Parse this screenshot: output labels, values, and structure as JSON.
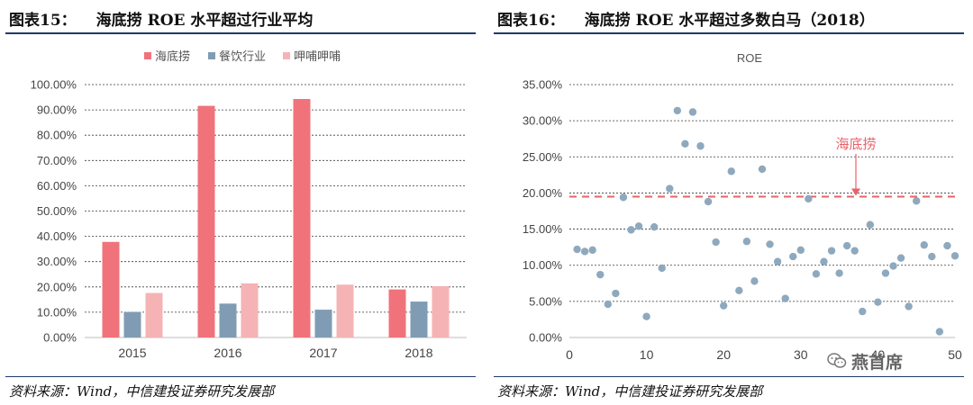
{
  "left": {
    "title_num": "图表15：",
    "title_text": "海底捞 ROE 水平超过行业平均",
    "source": "资料来源：Wind，中信建投证券研究发展部"
  },
  "right": {
    "title_num": "图表16：",
    "title_text": "海底捞 ROE 水平超过多数白马（2018）",
    "source": "资料来源：Wind，中信建投证券研究发展部"
  },
  "watermark": {
    "text": "燕首席"
  },
  "chart_data": [
    {
      "type": "bar",
      "title": "",
      "categories": [
        "2015",
        "2016",
        "2017",
        "2018"
      ],
      "series": [
        {
          "name": "海底捞",
          "values": [
            37.8,
            91.6,
            94.3,
            19.0
          ],
          "color": "#f0737b"
        },
        {
          "name": "餐饮行业",
          "values": [
            10.1,
            13.4,
            11.0,
            14.2
          ],
          "color": "#7f9cb4"
        },
        {
          "name": "呷哺呷哺",
          "values": [
            17.6,
            21.4,
            20.9,
            20.3
          ],
          "color": "#f6b3b5"
        }
      ],
      "yticks": [
        "0.00%",
        "10.00%",
        "20.00%",
        "30.00%",
        "40.00%",
        "50.00%",
        "60.00%",
        "70.00%",
        "80.00%",
        "90.00%",
        "100.00%"
      ],
      "ylim": [
        0,
        100
      ],
      "grid": true,
      "legend": "top-center"
    },
    {
      "type": "scatter",
      "title": "ROE",
      "xticks": [
        "0",
        "10",
        "20",
        "30",
        "40",
        "50"
      ],
      "xlim": [
        0,
        50
      ],
      "yticks": [
        "0.00%",
        "5.00%",
        "10.00%",
        "15.00%",
        "20.00%",
        "25.00%",
        "30.00%",
        "35.00%"
      ],
      "ylim": [
        0,
        35
      ],
      "grid": true,
      "point_color": "#8ea9be",
      "x": [
        1,
        2,
        3,
        4,
        5,
        6,
        7,
        8,
        9,
        10,
        11,
        12,
        13,
        14,
        15,
        16,
        17,
        18,
        19,
        20,
        21,
        22,
        23,
        24,
        25,
        26,
        27,
        28,
        29,
        30,
        31,
        32,
        33,
        34,
        35,
        36,
        37,
        38,
        39,
        40,
        41,
        42,
        43,
        44,
        45,
        46,
        47,
        48,
        49,
        50
      ],
      "y": [
        12.2,
        11.9,
        12.1,
        8.7,
        4.6,
        6.1,
        19.4,
        14.9,
        15.4,
        2.9,
        15.3,
        9.6,
        20.6,
        31.4,
        26.8,
        31.2,
        26.5,
        18.8,
        13.2,
        4.4,
        23.0,
        6.5,
        13.3,
        7.8,
        23.3,
        12.9,
        10.5,
        5.4,
        11.2,
        12.1,
        19.2,
        8.8,
        10.5,
        12.0,
        8.9,
        12.7,
        12.0,
        3.6,
        15.6,
        4.9,
        8.9,
        9.9,
        11.0,
        4.3,
        18.9,
        12.8,
        11.2,
        0.8,
        12.7,
        11.3
      ],
      "reference_line": {
        "label": "海底捞",
        "value": 19.5,
        "color": "#e8626a"
      }
    }
  ]
}
